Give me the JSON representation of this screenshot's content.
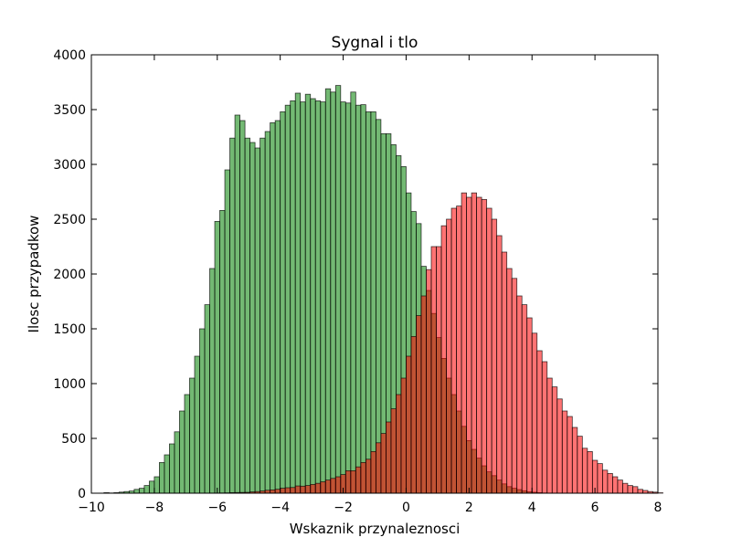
{
  "chart_data": {
    "type": "bar",
    "title": "Sygnal i tlo",
    "xlabel": "Wskaznik przynaleznosci",
    "ylabel": "Ilosc przypadkow",
    "xlim": [
      -10,
      8
    ],
    "ylim": [
      0,
      4000
    ],
    "xticks": [
      "−10",
      "−8",
      "−6",
      "−4",
      "−2",
      "0",
      "2",
      "4",
      "6",
      "8"
    ],
    "yticks": [
      "0",
      "500",
      "1000",
      "1500",
      "2000",
      "2500",
      "3000",
      "3500",
      "4000"
    ],
    "grid": false,
    "legend": "none",
    "bin_start": -9.6,
    "bin_width": 0.16,
    "colors": {
      "green_fill": "#008000",
      "red_fill": "#ff0000",
      "edge": "#000000",
      "overlap_shown": "#617a1a"
    },
    "series": [
      {
        "color": "#008000",
        "values": [
          5,
          2,
          5,
          10,
          15,
          20,
          35,
          45,
          70,
          110,
          150,
          280,
          350,
          450,
          560,
          750,
          900,
          1050,
          1250,
          1500,
          1720,
          2050,
          2480,
          2580,
          2950,
          3240,
          3450,
          3400,
          3240,
          3200,
          3150,
          3240,
          3300,
          3380,
          3400,
          3480,
          3540,
          3580,
          3650,
          3570,
          3640,
          3600,
          3580,
          3570,
          3690,
          3660,
          3720,
          3570,
          3560,
          3660,
          3540,
          3545,
          3480,
          3480,
          3410,
          3280,
          3280,
          3180,
          3080,
          2980,
          2740,
          2570,
          2460,
          2070,
          1850,
          1640,
          1420,
          1230,
          1050,
          900,
          750,
          610,
          480,
          400,
          320,
          250,
          195,
          160,
          120,
          85,
          60,
          45,
          33,
          22,
          13,
          9,
          5,
          2,
          1,
          0,
          0,
          0,
          0,
          0,
          0,
          0,
          0,
          0,
          0,
          0,
          0,
          0,
          0,
          0,
          0,
          0,
          0,
          0,
          0,
          0,
          0,
          0,
          0
        ]
      },
      {
        "color": "#ff0000",
        "values": [
          0,
          0,
          0,
          0,
          0,
          0,
          0,
          0,
          0,
          0,
          0,
          0,
          0,
          0,
          0,
          0,
          0,
          0,
          0,
          0,
          0,
          1,
          1,
          2,
          3,
          5,
          6,
          7,
          8,
          12,
          15,
          20,
          27,
          30,
          36,
          45,
          50,
          52,
          66,
          64,
          70,
          80,
          90,
          104,
          120,
          135,
          150,
          170,
          205,
          205,
          240,
          280,
          310,
          380,
          460,
          545,
          650,
          770,
          900,
          1050,
          1250,
          1430,
          1620,
          1800,
          2040,
          2250,
          2250,
          2440,
          2500,
          2600,
          2620,
          2740,
          2700,
          2740,
          2700,
          2680,
          2600,
          2500,
          2350,
          2200,
          2050,
          1960,
          1800,
          1720,
          1600,
          1460,
          1300,
          1200,
          1050,
          970,
          860,
          750,
          700,
          600,
          520,
          410,
          380,
          300,
          270,
          210,
          180,
          150,
          120,
          90,
          70,
          60,
          35,
          25,
          15,
          10,
          4
        ]
      }
    ]
  }
}
